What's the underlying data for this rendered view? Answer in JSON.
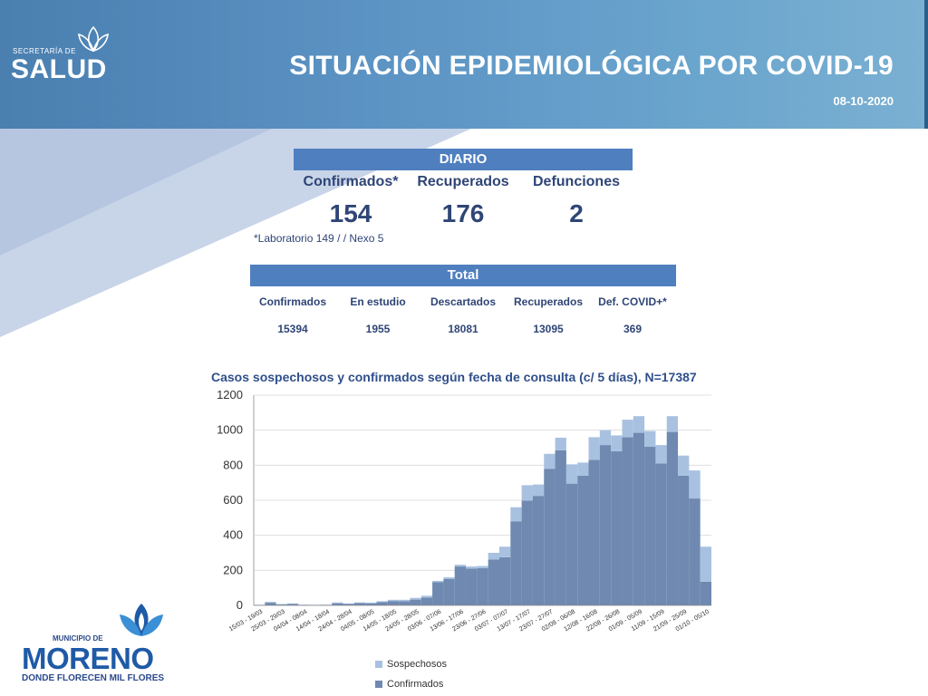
{
  "header": {
    "logo_pre": "SECRETARÍA DE",
    "logo_name": "SALUD",
    "title": "SITUACIÓN EPIDEMIOLÓGICA POR COVID-19",
    "date": "08-10-2020"
  },
  "daily": {
    "heading": "DIARIO",
    "columns": [
      {
        "label": "Confirmados*",
        "value": "154"
      },
      {
        "label": "Recuperados",
        "value": "176"
      },
      {
        "label": "Defunciones",
        "value": "2"
      }
    ],
    "note": "*Laboratorio 149 / / Nexo 5"
  },
  "total": {
    "heading": "Total",
    "columns": [
      {
        "label": "Confirmados",
        "value": "15394"
      },
      {
        "label": "En estudio",
        "value": "1955"
      },
      {
        "label": "Descartados",
        "value": "18081"
      },
      {
        "label": "Recuperados",
        "value": "13095"
      },
      {
        "label": "Def. COVID+*",
        "value": "369"
      }
    ]
  },
  "footer_logo": {
    "muni": "MUNICIPIO DE",
    "name": "MORENO",
    "tagline": "DONDE FLORECEN MIL FLORES"
  },
  "chart_data": {
    "type": "bar",
    "stacked": true,
    "title": "Casos sospechosos y confirmados según fecha de consulta (c/ 5 días), N=17387",
    "xlabel": "",
    "ylabel": "",
    "ylim": [
      0,
      1200
    ],
    "yticks": [
      0,
      200,
      400,
      600,
      800,
      1000,
      1200
    ],
    "x_tick_labels": [
      "15/03 - 19/03",
      "25/03 - 29/03",
      "04/04 - 08/04",
      "14/04 - 18/04",
      "24/04 - 28/04",
      "04/05 - 08/05",
      "14/05 - 18/05",
      "24/05 - 28/05",
      "03/06 - 07/06",
      "13/06 - 17/06",
      "23/06 - 27/06",
      "03/07 - 07/07",
      "13/07 - 17/07",
      "23/07 - 27/07",
      "02/08 - 06/08",
      "12/08 - 16/08",
      "22/08 - 26/08",
      "01/09 - 05/09",
      "11/09 - 15/09",
      "21/09 - 25/09",
      "01/10 - 05/10"
    ],
    "legend_position": "bottom",
    "colors": {
      "Sospechosos": "#a9c1e0",
      "Confirmados": "#6f89b0"
    },
    "series": [
      {
        "name": "Confirmados",
        "values": [
          3,
          15,
          5,
          8,
          3,
          3,
          3,
          12,
          8,
          14,
          12,
          18,
          25,
          24,
          33,
          45,
          132,
          150,
          222,
          210,
          212,
          262,
          275,
          480,
          598,
          625,
          780,
          885,
          695,
          740,
          830,
          915,
          880,
          960,
          985,
          905,
          810,
          990,
          740,
          610,
          135
        ]
      },
      {
        "name": "Sospechosos",
        "values": [
          0,
          5,
          3,
          3,
          1,
          0,
          1,
          5,
          3,
          3,
          4,
          6,
          7,
          8,
          10,
          10,
          8,
          10,
          10,
          12,
          13,
          38,
          60,
          80,
          88,
          65,
          85,
          72,
          110,
          75,
          130,
          85,
          90,
          100,
          95,
          90,
          105,
          90,
          115,
          160,
          200
        ]
      }
    ]
  },
  "legend": {
    "items": [
      {
        "label": "Sospechosos"
      },
      {
        "label": "Confirmados"
      }
    ]
  }
}
